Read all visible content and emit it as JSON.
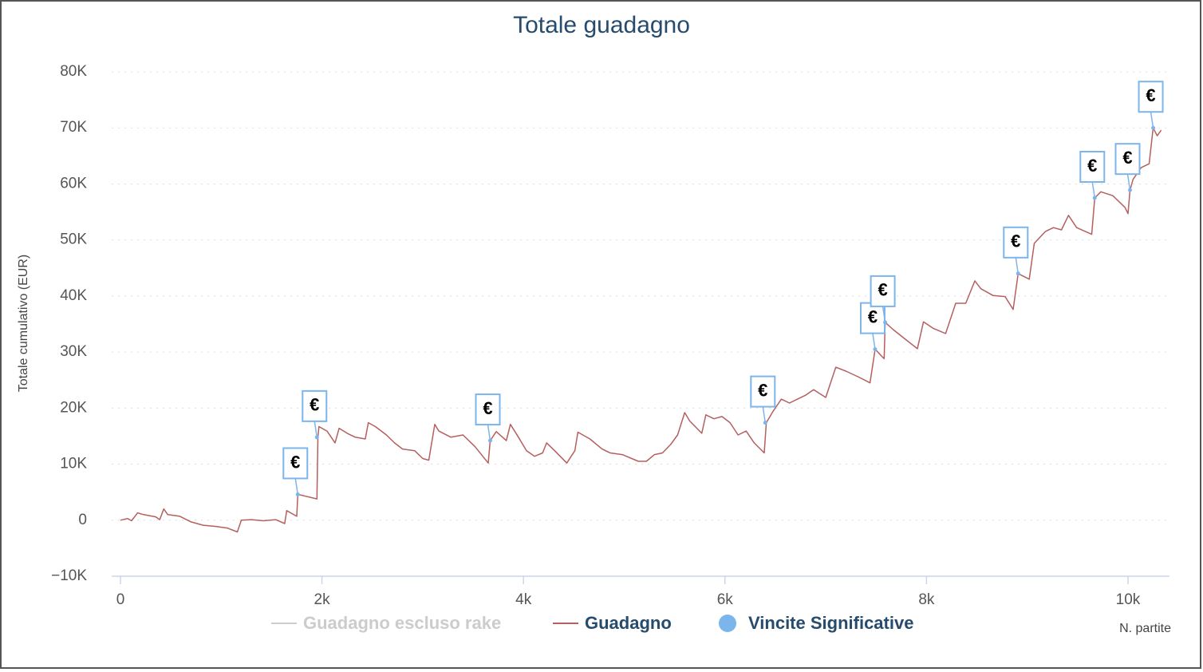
{
  "chart_data": {
    "type": "line",
    "title": "Totale guadagno",
    "y_axis_label": "Totale cumulativo (EUR)",
    "x_axis_label": "N. partite",
    "xlim": [
      -87,
      10412
    ],
    "ylim": [
      -10000,
      80000
    ],
    "xticks": [
      0,
      {
        "value": 2000,
        "label": "2k"
      },
      {
        "value": 4000,
        "label": "4k"
      },
      {
        "value": 6000,
        "label": "6k"
      },
      {
        "value": 8000,
        "label": "8k"
      },
      {
        "value": 10000,
        "label": "10k"
      }
    ],
    "yticks": [
      {
        "value": -10000,
        "label": "−10K"
      },
      0,
      {
        "value": 10000,
        "label": "10K"
      },
      {
        "value": 20000,
        "label": "20K"
      },
      {
        "value": 30000,
        "label": "30K"
      },
      {
        "value": 40000,
        "label": "40K"
      },
      {
        "value": 50000,
        "label": "50K"
      },
      {
        "value": 60000,
        "label": "60K"
      },
      {
        "value": 70000,
        "label": "70K"
      },
      {
        "value": 80000,
        "label": "80K"
      }
    ],
    "grid": true,
    "series": [
      {
        "name": "Guadagno escluso rake",
        "color": "#cccccc",
        "visible": false
      },
      {
        "name": "Guadagno",
        "color": "#b5605f",
        "x": [
          0,
          70,
          110,
          170,
          230,
          350,
          390,
          430,
          470,
          590,
          700,
          820,
          940,
          1060,
          1160,
          1200,
          1300,
          1420,
          1540,
          1630,
          1650,
          1750,
          1760,
          1810,
          1950,
          1960,
          1970,
          2050,
          2130,
          2170,
          2250,
          2330,
          2430,
          2460,
          2530,
          2640,
          2720,
          2800,
          2920,
          3000,
          3060,
          3120,
          3160,
          3280,
          3400,
          3520,
          3650,
          3670,
          3730,
          3830,
          3870,
          3950,
          4030,
          4110,
          4190,
          4230,
          4310,
          4430,
          4510,
          4540,
          4660,
          4780,
          4860,
          4980,
          5140,
          5220,
          5300,
          5380,
          5460,
          5530,
          5600,
          5650,
          5770,
          5810,
          5890,
          5970,
          6050,
          6130,
          6210,
          6290,
          6390,
          6410,
          6480,
          6560,
          6640,
          6720,
          6800,
          6880,
          7000,
          7100,
          7200,
          7320,
          7440,
          7490,
          7580,
          7590,
          7670,
          7790,
          7910,
          7970,
          8070,
          8190,
          8290,
          8390,
          8480,
          8540,
          8660,
          8780,
          8860,
          8910,
          9020,
          9070,
          9180,
          9260,
          9340,
          9410,
          9490,
          9640,
          9670,
          9730,
          9850,
          9970,
          10000,
          10020,
          10050,
          10130,
          10210,
          10250,
          10290,
          10330
        ],
        "values": [
          0,
          300,
          -100,
          1300,
          1000,
          600,
          100,
          2000,
          1000,
          700,
          -300,
          -900,
          -1100,
          -1400,
          -2100,
          0,
          100,
          -100,
          100,
          -600,
          1700,
          700,
          4600,
          4400,
          3800,
          14800,
          16700,
          15900,
          13800,
          16400,
          15500,
          14800,
          14500,
          17400,
          16700,
          15200,
          13800,
          12700,
          12400,
          11000,
          10700,
          17100,
          15900,
          14800,
          15200,
          13100,
          10200,
          14200,
          15800,
          14200,
          17100,
          14800,
          12400,
          11400,
          12000,
          13800,
          12400,
          10200,
          12400,
          15700,
          14500,
          12700,
          12000,
          11700,
          10500,
          10500,
          11700,
          12000,
          13500,
          15200,
          19200,
          17700,
          15500,
          18800,
          18100,
          18500,
          17400,
          15200,
          15900,
          13800,
          12000,
          17400,
          19500,
          21600,
          20900,
          21600,
          22300,
          23300,
          21900,
          27300,
          26600,
          25600,
          24500,
          30500,
          28800,
          35300,
          34000,
          32300,
          30600,
          35400,
          34200,
          33300,
          38700,
          38700,
          42700,
          41300,
          40100,
          39900,
          37600,
          44000,
          43000,
          49400,
          51500,
          52200,
          51800,
          54400,
          52200,
          51000,
          57500,
          58600,
          57900,
          55800,
          54700,
          58900,
          60800,
          62900,
          63600,
          70000,
          68600,
          69600
        ]
      },
      {
        "name": "Vincite Significative",
        "color": "#7cb5ec",
        "flag_label": "€",
        "x": [
          1760,
          1950,
          3670,
          6400,
          7490,
          7590,
          8910,
          9670,
          10020,
          10250
        ],
        "values": [
          4600,
          14800,
          14200,
          17400,
          30500,
          35300,
          44000,
          57500,
          58900,
          70000
        ]
      }
    ]
  }
}
